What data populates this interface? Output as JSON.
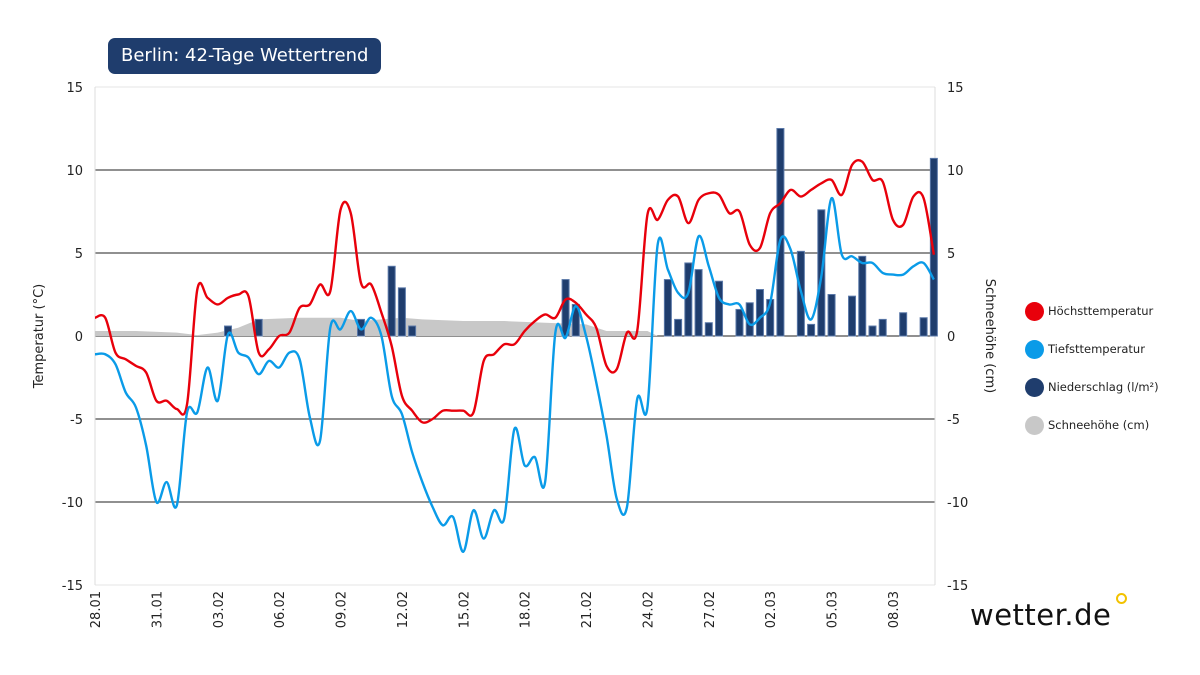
{
  "title": "Berlin: 42-Tage Wettertrend",
  "logo": "wetter.de",
  "chart_data": {
    "type": "line",
    "y_left_label": "Temperatur (°C)",
    "y_right_label": "Schneehöhe (cm)",
    "ylim": [
      -15,
      15
    ],
    "yticks": [
      15,
      10,
      5,
      0,
      -5,
      -10,
      -15
    ],
    "xtick_labels": [
      "28.01",
      "31.01",
      "03.02",
      "06.02",
      "09.02",
      "12.02",
      "15.02",
      "18.02",
      "21.02",
      "24.02",
      "27.02",
      "02.03",
      "05.03",
      "08.03"
    ],
    "grid": true,
    "legend_placement": "right",
    "legend": [
      {
        "name": "Höchsttemperatur",
        "color": "#e8000b"
      },
      {
        "name": "Tiefsttemperatur",
        "color": "#0a9be8"
      },
      {
        "name": "Niederschlag (l/m²)",
        "color": "#1f3d6d"
      },
      {
        "name": "Schneehöhe (cm)",
        "color": "#c8c8c8"
      }
    ],
    "times": [
      "28.01 00:00",
      "28.01 12:00",
      "29.01 00:00",
      "29.01 12:00",
      "30.01 00:00",
      "30.01 12:00",
      "31.01 00:00",
      "31.01 12:00",
      "01.02 00:00",
      "01.02 12:00",
      "02.02 00:00",
      "02.02 12:00",
      "03.02 00:00",
      "03.02 12:00",
      "04.02 00:00",
      "04.02 12:00",
      "05.02 00:00",
      "05.02 12:00",
      "06.02 00:00",
      "06.02 12:00",
      "07.02 00:00",
      "07.02 12:00",
      "08.02 00:00",
      "08.02 12:00",
      "09.02 00:00",
      "09.02 12:00",
      "10.02 00:00",
      "10.02 12:00",
      "11.02 00:00",
      "11.02 12:00",
      "12.02 00:00",
      "12.02 12:00",
      "13.02 00:00",
      "13.02 12:00",
      "14.02 00:00",
      "14.02 12:00",
      "15.02 00:00",
      "15.02 12:00",
      "16.02 00:00",
      "16.02 12:00",
      "17.02 00:00",
      "17.02 12:00",
      "18.02 00:00",
      "18.02 12:00",
      "19.02 00:00",
      "19.02 12:00",
      "20.02 00:00",
      "20.02 12:00",
      "21.02 00:00",
      "21.02 12:00",
      "22.02 00:00",
      "22.02 12:00",
      "23.02 00:00",
      "23.02 12:00",
      "24.02 00:00",
      "24.02 12:00",
      "25.02 00:00",
      "25.02 12:00",
      "26.02 00:00",
      "26.02 12:00",
      "27.02 00:00",
      "27.02 12:00",
      "28.02 00:00",
      "28.02 12:00",
      "01.03 00:00",
      "01.03 12:00",
      "02.03 00:00",
      "02.03 12:00",
      "03.03 00:00",
      "03.03 12:00",
      "04.03 00:00",
      "04.03 12:00",
      "05.03 00:00",
      "05.03 12:00",
      "06.03 00:00",
      "06.03 12:00",
      "07.03 00:00",
      "07.03 12:00",
      "08.03 00:00",
      "08.03 12:00",
      "09.03 00:00",
      "09.03 12:00",
      "10.03 00:00"
    ],
    "series": [
      {
        "name": "Höchsttemperatur",
        "color": "#e8000b",
        "values": [
          1.1,
          1.1,
          -1.0,
          -1.4,
          -1.8,
          -2.2,
          -3.9,
          -3.9,
          -4.4,
          -4.1,
          2.8,
          2.3,
          1.9,
          2.3,
          2.5,
          2.4,
          -1.0,
          -0.8,
          0.0,
          0.2,
          1.7,
          1.9,
          3.1,
          2.7,
          7.6,
          7.4,
          3.2,
          3.1,
          1.4,
          -0.6,
          -3.6,
          -4.5,
          -5.2,
          -5.0,
          -4.5,
          -4.5,
          -4.5,
          -4.6,
          -1.5,
          -1.1,
          -0.5,
          -0.5,
          0.3,
          0.9,
          1.3,
          1.1,
          2.2,
          2.0,
          1.3,
          0.5,
          -1.8,
          -2.0,
          0.2,
          0.3,
          7.3,
          7.0,
          8.2,
          8.4,
          6.8,
          8.2,
          8.6,
          8.5,
          7.4,
          7.5,
          5.5,
          5.3,
          7.4,
          8.0,
          8.8,
          8.4,
          8.8,
          9.2,
          9.4,
          8.5,
          10.3,
          10.5,
          9.4,
          9.3,
          7.0,
          6.7,
          8.4,
          8.3,
          4.9
        ]
      },
      {
        "name": "Tiefsttemperatur",
        "color": "#0a9be8",
        "values": [
          -1.1,
          -1.1,
          -1.7,
          -3.4,
          -4.3,
          -6.6,
          -10.0,
          -8.8,
          -10.2,
          -4.6,
          -4.6,
          -1.9,
          -3.9,
          0.1,
          -1.0,
          -1.3,
          -2.3,
          -1.5,
          -1.9,
          -1.0,
          -1.4,
          -4.9,
          -6.3,
          0.5,
          0.4,
          1.5,
          0.4,
          1.1,
          0.0,
          -3.6,
          -4.7,
          -7.0,
          -8.8,
          -10.3,
          -11.4,
          -10.9,
          -13.0,
          -10.5,
          -12.2,
          -10.5,
          -11.0,
          -5.6,
          -7.8,
          -7.3,
          -8.8,
          0.2,
          -0.1,
          1.8,
          0.0,
          -2.8,
          -6.0,
          -9.8,
          -10.3,
          -3.8,
          -4.3,
          5.5,
          4.0,
          2.6,
          2.6,
          6.0,
          4.2,
          2.3,
          1.9,
          1.9,
          0.7,
          1.1,
          2.0,
          5.8,
          5.2,
          2.7,
          1.0,
          3.6,
          8.3,
          4.9,
          4.8,
          4.4,
          4.4,
          3.8,
          3.7,
          3.7,
          4.2,
          4.4,
          3.4
        ]
      }
    ],
    "precipitation": [
      {
        "t": "03.02 12:00",
        "v": 0.6
      },
      {
        "t": "05.02 00:00",
        "v": 1.0
      },
      {
        "t": "10.02 00:00",
        "v": 1.0
      },
      {
        "t": "11.02 12:00",
        "v": 4.2
      },
      {
        "t": "12.02 00:00",
        "v": 2.9
      },
      {
        "t": "12.02 12:00",
        "v": 0.6
      },
      {
        "t": "20.02 00:00",
        "v": 3.4
      },
      {
        "t": "20.02 12:00",
        "v": 1.9
      },
      {
        "t": "25.02 00:00",
        "v": 3.4
      },
      {
        "t": "25.02 12:00",
        "v": 1.0
      },
      {
        "t": "26.02 00:00",
        "v": 4.4
      },
      {
        "t": "26.02 12:00",
        "v": 4.0
      },
      {
        "t": "27.02 00:00",
        "v": 0.8
      },
      {
        "t": "27.02 12:00",
        "v": 3.3
      },
      {
        "t": "28.02 12:00",
        "v": 1.6
      },
      {
        "t": "01.03 00:00",
        "v": 2.0
      },
      {
        "t": "01.03 12:00",
        "v": 2.8
      },
      {
        "t": "02.03 00:00",
        "v": 2.2
      },
      {
        "t": "02.03 12:00",
        "v": 12.5
      },
      {
        "t": "03.03 12:00",
        "v": 5.1
      },
      {
        "t": "04.03 00:00",
        "v": 0.7
      },
      {
        "t": "04.03 12:00",
        "v": 7.6
      },
      {
        "t": "05.03 00:00",
        "v": 2.5
      },
      {
        "t": "06.03 00:00",
        "v": 2.4
      },
      {
        "t": "06.03 12:00",
        "v": 4.8
      },
      {
        "t": "07.03 00:00",
        "v": 0.6
      },
      {
        "t": "07.03 12:00",
        "v": 1.0
      },
      {
        "t": "08.03 12:00",
        "v": 1.4
      },
      {
        "t": "09.03 12:00",
        "v": 1.1
      },
      {
        "t": "10.03 00:00",
        "v": 10.7
      }
    ],
    "snow_depth": [
      {
        "t": "28.01 00:00",
        "v": 0.3
      },
      {
        "t": "30.01 00:00",
        "v": 0.3
      },
      {
        "t": "01.02 00:00",
        "v": 0.2
      },
      {
        "t": "02.02 00:00",
        "v": 0.05
      },
      {
        "t": "03.02 00:00",
        "v": 0.2
      },
      {
        "t": "04.02 00:00",
        "v": 0.5
      },
      {
        "t": "05.02 00:00",
        "v": 1.0
      },
      {
        "t": "07.02 00:00",
        "v": 1.1
      },
      {
        "t": "09.02 00:00",
        "v": 1.1
      },
      {
        "t": "10.02 00:00",
        "v": 0.9
      },
      {
        "t": "11.02 00:00",
        "v": 1.0
      },
      {
        "t": "12.02 00:00",
        "v": 1.1
      },
      {
        "t": "13.02 00:00",
        "v": 1.0
      },
      {
        "t": "15.02 00:00",
        "v": 0.9
      },
      {
        "t": "17.02 00:00",
        "v": 0.9
      },
      {
        "t": "19.02 00:00",
        "v": 0.8
      },
      {
        "t": "21.02 00:00",
        "v": 0.7
      },
      {
        "t": "22.02 00:00",
        "v": 0.3
      },
      {
        "t": "24.02 00:00",
        "v": 0.3
      },
      {
        "t": "24.02 12:00",
        "v": 0
      }
    ]
  }
}
